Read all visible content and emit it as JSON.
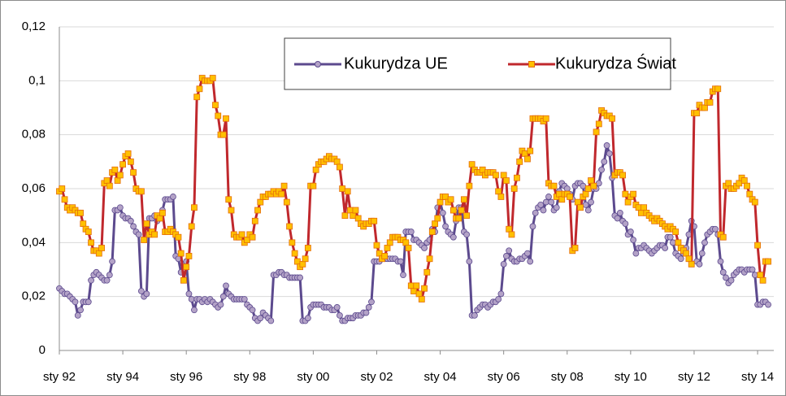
{
  "chart_data": {
    "type": "line",
    "categories": [
      "sty 92",
      null,
      null,
      null,
      null,
      null,
      null,
      null,
      null,
      null,
      null,
      null,
      null,
      null,
      null,
      null,
      null,
      null,
      null,
      null,
      null,
      null,
      null,
      null,
      "sty 94",
      null,
      null,
      null,
      null,
      null,
      null,
      null,
      null,
      null,
      null,
      null,
      null,
      null,
      null,
      null,
      null,
      null,
      null,
      null,
      null,
      null,
      null,
      null,
      "sty 96",
      null,
      null,
      null,
      null,
      null,
      null,
      null,
      null,
      null,
      null,
      null,
      null,
      null,
      null,
      null,
      null,
      null,
      null,
      null,
      null,
      null,
      null,
      null,
      "sty 98",
      null,
      null,
      null,
      null,
      null,
      null,
      null,
      null,
      null,
      null,
      null,
      null,
      null,
      null,
      null,
      null,
      null,
      null,
      null,
      null,
      null,
      null,
      null,
      "sty 00",
      null,
      null,
      null,
      null,
      null,
      null,
      null,
      null,
      null,
      null,
      null,
      null,
      null,
      null,
      null,
      null,
      null,
      null,
      null,
      null,
      null,
      null,
      null,
      "sty 02",
      null,
      null,
      null,
      null,
      null,
      null,
      null,
      null,
      null,
      null,
      null,
      null,
      null,
      null,
      null,
      null,
      null,
      null,
      null,
      null,
      null,
      null,
      null,
      "sty 04",
      null,
      null,
      null,
      null,
      null,
      null,
      null,
      null,
      null,
      null,
      null,
      null,
      null,
      null,
      null,
      null,
      null,
      null,
      null,
      null,
      null,
      null,
      null,
      "sty 06",
      null,
      null,
      null,
      null,
      null,
      null,
      null,
      null,
      null,
      null,
      null,
      null,
      null,
      null,
      null,
      null,
      null,
      null,
      null,
      null,
      null,
      null,
      null,
      "sty 08",
      null,
      null,
      null,
      null,
      null,
      null,
      null,
      null,
      null,
      null,
      null,
      null,
      null,
      null,
      null,
      null,
      null,
      null,
      null,
      null,
      null,
      null,
      null,
      "sty 10",
      null,
      null,
      null,
      null,
      null,
      null,
      null,
      null,
      null,
      null,
      null,
      null,
      null,
      null,
      null,
      null,
      null,
      null,
      null,
      null,
      null,
      null,
      null,
      "sty 12",
      null,
      null,
      null,
      null,
      null,
      null,
      null,
      null,
      null,
      null,
      null,
      null,
      null,
      null,
      null,
      null,
      null,
      null,
      null,
      null,
      null,
      null,
      null,
      "sty 14",
      null,
      null,
      null,
      null
    ],
    "series": [
      {
        "name": "Kukurydza UE",
        "color": "#5c4a8e",
        "marker": "circle",
        "marker_fill": "#b3a2c7",
        "values": [
          0.023,
          0.022,
          0.021,
          0.021,
          0.02,
          0.019,
          0.018,
          0.013,
          0.015,
          0.018,
          0.018,
          0.018,
          0.026,
          0.028,
          0.029,
          0.028,
          0.027,
          0.026,
          0.026,
          0.028,
          0.033,
          0.052,
          0.052,
          0.053,
          0.05,
          0.049,
          0.049,
          0.048,
          0.046,
          0.044,
          0.043,
          0.022,
          0.02,
          0.021,
          0.049,
          0.049,
          0.05,
          0.048,
          0.049,
          0.052,
          0.056,
          0.056,
          0.056,
          0.057,
          0.035,
          0.034,
          0.029,
          0.032,
          0.033,
          0.021,
          0.019,
          0.015,
          0.019,
          0.019,
          0.018,
          0.019,
          0.018,
          0.019,
          0.018,
          0.017,
          0.016,
          0.017,
          0.02,
          0.024,
          0.021,
          0.02,
          0.019,
          0.019,
          0.019,
          0.019,
          0.019,
          0.017,
          0.016,
          0.015,
          0.012,
          0.011,
          0.012,
          0.014,
          0.013,
          0.012,
          0.011,
          0.028,
          0.028,
          0.029,
          0.029,
          0.028,
          0.028,
          0.027,
          0.027,
          0.027,
          0.027,
          0.027,
          0.011,
          0.011,
          0.012,
          0.016,
          0.017,
          0.017,
          0.017,
          0.017,
          0.016,
          0.016,
          0.016,
          0.015,
          0.015,
          0.016,
          0.013,
          0.011,
          0.011,
          0.012,
          0.012,
          0.012,
          0.013,
          0.013,
          0.013,
          0.014,
          0.014,
          0.016,
          0.018,
          0.033,
          0.033,
          0.033,
          0.034,
          0.034,
          0.034,
          0.034,
          0.034,
          0.034,
          0.033,
          0.033,
          0.028,
          0.044,
          0.044,
          0.044,
          0.041,
          0.041,
          0.04,
          0.039,
          0.038,
          0.04,
          0.041,
          0.045,
          0.044,
          0.053,
          0.055,
          0.051,
          0.046,
          0.044,
          0.043,
          0.042,
          0.048,
          0.053,
          0.053,
          0.044,
          0.043,
          0.033,
          0.013,
          0.013,
          0.015,
          0.016,
          0.017,
          0.017,
          0.016,
          0.017,
          0.018,
          0.018,
          0.019,
          0.021,
          0.032,
          0.035,
          0.037,
          0.034,
          0.033,
          0.033,
          0.034,
          0.034,
          0.035,
          0.036,
          0.033,
          0.046,
          0.051,
          0.053,
          0.054,
          0.052,
          0.055,
          0.057,
          0.055,
          0.052,
          0.053,
          0.059,
          0.062,
          0.061,
          0.06,
          0.058,
          0.056,
          0.061,
          0.062,
          0.062,
          0.061,
          0.054,
          0.052,
          0.055,
          0.06,
          0.06,
          0.062,
          0.067,
          0.07,
          0.076,
          0.073,
          0.064,
          0.05,
          0.049,
          0.051,
          0.048,
          0.047,
          0.043,
          0.044,
          0.041,
          0.036,
          0.038,
          0.038,
          0.039,
          0.038,
          0.037,
          0.036,
          0.037,
          0.038,
          0.039,
          0.039,
          0.038,
          0.042,
          0.042,
          0.04,
          0.036,
          0.035,
          0.034,
          0.036,
          0.038,
          0.043,
          0.048,
          0.046,
          0.033,
          0.032,
          0.036,
          0.04,
          0.043,
          0.044,
          0.045,
          0.045,
          0.043,
          0.033,
          0.029,
          0.027,
          0.025,
          0.026,
          0.028,
          0.029,
          0.03,
          0.03,
          0.029,
          0.03,
          0.03,
          0.03,
          0.028,
          0.017,
          0.017,
          0.018,
          0.018,
          0.017
        ]
      },
      {
        "name": "Kukurydza Świat",
        "color": "#c0282d",
        "marker": "square",
        "marker_fill": "#ffc000",
        "values": [
          0.059,
          0.06,
          0.056,
          0.053,
          0.052,
          0.053,
          0.052,
          0.051,
          0.051,
          0.047,
          0.045,
          0.044,
          0.04,
          0.037,
          0.037,
          0.036,
          0.038,
          0.062,
          0.063,
          0.061,
          0.066,
          0.067,
          0.063,
          0.065,
          0.069,
          0.072,
          0.073,
          0.07,
          0.066,
          0.06,
          0.059,
          0.059,
          0.041,
          0.047,
          0.043,
          0.044,
          0.043,
          0.05,
          0.049,
          0.051,
          0.044,
          0.044,
          0.045,
          0.044,
          0.043,
          0.042,
          0.036,
          0.026,
          0.031,
          0.035,
          0.046,
          0.053,
          0.094,
          0.097,
          0.101,
          0.1,
          0.1,
          0.1,
          0.101,
          0.091,
          0.087,
          0.08,
          0.08,
          0.086,
          0.056,
          0.052,
          0.043,
          0.042,
          0.042,
          0.043,
          0.04,
          0.041,
          0.043,
          0.042,
          0.048,
          0.052,
          0.055,
          0.057,
          0.057,
          0.058,
          0.058,
          0.059,
          0.058,
          0.059,
          0.058,
          0.061,
          0.055,
          0.046,
          0.04,
          0.036,
          0.033,
          0.031,
          0.032,
          0.034,
          0.038,
          0.061,
          0.061,
          0.067,
          0.069,
          0.07,
          0.07,
          0.071,
          0.072,
          0.071,
          0.071,
          0.07,
          0.068,
          0.06,
          0.05,
          0.059,
          0.052,
          0.05,
          0.052,
          0.049,
          0.047,
          0.046,
          0.047,
          0.047,
          0.048,
          0.048,
          0.039,
          0.036,
          0.034,
          0.035,
          0.038,
          0.04,
          0.042,
          0.042,
          0.042,
          0.041,
          0.041,
          0.04,
          0.038,
          0.024,
          0.022,
          0.024,
          0.021,
          0.019,
          0.023,
          0.029,
          0.034,
          0.044,
          0.047,
          0.049,
          0.055,
          0.057,
          0.057,
          0.055,
          0.056,
          0.052,
          0.049,
          0.049,
          0.052,
          0.056,
          0.05,
          0.061,
          0.069,
          0.067,
          0.066,
          0.066,
          0.067,
          0.065,
          0.066,
          0.066,
          0.066,
          0.065,
          0.059,
          0.057,
          0.065,
          0.063,
          0.045,
          0.043,
          0.06,
          0.064,
          0.07,
          0.074,
          0.073,
          0.071,
          0.074,
          0.086,
          0.086,
          0.086,
          0.086,
          0.085,
          0.086,
          0.062,
          0.061,
          0.061,
          0.057,
          0.058,
          0.056,
          0.058,
          0.058,
          0.057,
          0.037,
          0.038,
          0.055,
          0.053,
          0.057,
          0.058,
          0.06,
          0.063,
          0.061,
          0.081,
          0.084,
          0.089,
          0.088,
          0.087,
          0.087,
          0.086,
          0.065,
          0.066,
          0.066,
          0.065,
          0.058,
          0.055,
          0.057,
          0.058,
          0.054,
          0.053,
          0.051,
          0.053,
          0.051,
          0.05,
          0.049,
          0.048,
          0.049,
          0.048,
          0.047,
          0.046,
          0.045,
          0.046,
          0.045,
          0.044,
          0.04,
          0.038,
          0.037,
          0.036,
          0.034,
          0.032,
          0.088,
          0.088,
          0.091,
          0.09,
          0.09,
          0.092,
          0.092,
          0.096,
          0.097,
          0.097,
          0.043,
          0.042,
          0.061,
          0.062,
          0.06,
          0.06,
          0.061,
          0.062,
          0.064,
          0.063,
          0.061,
          0.058,
          0.056,
          0.055,
          0.039,
          0.028,
          0.026,
          0.033,
          0.033
        ]
      }
    ],
    "ylim": [
      0,
      0.12
    ],
    "yticks": [
      0,
      {
        "value": 0.02,
        "label": "0,02"
      },
      {
        "value": 0.04,
        "label": "0,04"
      },
      {
        "value": 0.06,
        "label": "0,06"
      },
      {
        "value": 0.08,
        "label": "0,08"
      },
      {
        "value": 0.1,
        "label": "0,1"
      },
      {
        "value": 0.12,
        "label": "0,12"
      }
    ],
    "grid": true,
    "legend": "top"
  }
}
